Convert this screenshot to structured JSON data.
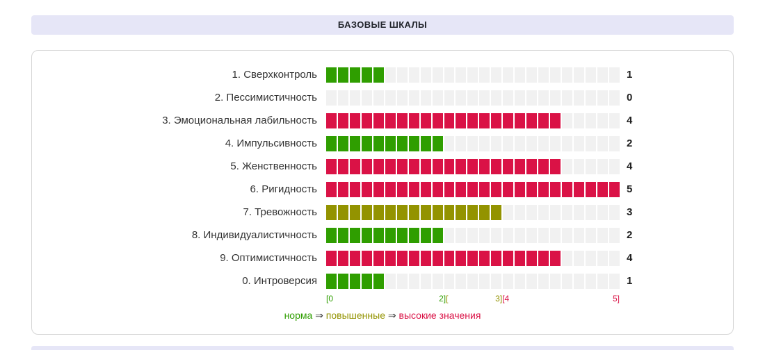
{
  "header": {
    "title": "Базовые шкалы"
  },
  "chart_data": {
    "type": "bar",
    "title": "Базовые шкалы",
    "orientation": "horizontal",
    "max": 5,
    "segments_per_unit": 5,
    "xlim": [
      0,
      5
    ],
    "rows": [
      {
        "label": "1. Сверхконтроль",
        "value": 1,
        "level": "norm"
      },
      {
        "label": "2. Пессимистичность",
        "value": 0,
        "level": "norm"
      },
      {
        "label": "3. Эмоциональная лабильность",
        "value": 4,
        "level": "high"
      },
      {
        "label": "4. Импульсивность",
        "value": 2,
        "level": "norm"
      },
      {
        "label": "5. Женственность",
        "value": 4,
        "level": "high"
      },
      {
        "label": "6. Ригидность",
        "value": 5,
        "level": "high"
      },
      {
        "label": "7. Тревожность",
        "value": 3,
        "level": "elevated"
      },
      {
        "label": "8. Индивидуалистичность",
        "value": 2,
        "level": "norm"
      },
      {
        "label": "9. Оптимистичность",
        "value": 4,
        "level": "high"
      },
      {
        "label": "0. Интроверсия",
        "value": 1,
        "level": "norm"
      }
    ],
    "axis_markers": [
      {
        "pos": 0,
        "align": "left",
        "spans": [
          {
            "text": "[0",
            "level": "norm"
          }
        ]
      },
      {
        "pos": 0.4,
        "align": "center",
        "spans": [
          {
            "text": "2]",
            "level": "norm"
          },
          {
            "text": "[",
            "level": "elevated"
          }
        ]
      },
      {
        "pos": 0.6,
        "align": "center",
        "spans": [
          {
            "text": "3]",
            "level": "elevated"
          },
          {
            "text": "[4",
            "level": "high"
          }
        ]
      },
      {
        "pos": 1,
        "align": "right",
        "spans": [
          {
            "text": "5]",
            "level": "high"
          }
        ]
      }
    ],
    "legend_spans": [
      {
        "text": "норма",
        "level": "norm"
      },
      {
        "text": " ⇒ ",
        "level": "plain"
      },
      {
        "text": "повышенные",
        "level": "elevated"
      },
      {
        "text": " ⇒ ",
        "level": "plain"
      },
      {
        "text": "высокие значения",
        "level": "high"
      }
    ],
    "colors": {
      "norm": "#2f9e00",
      "elevated": "#939300",
      "high": "#da1246",
      "plain": "#333333",
      "track": "#f1f1f1",
      "header_bg": "#e6e6f7"
    }
  }
}
